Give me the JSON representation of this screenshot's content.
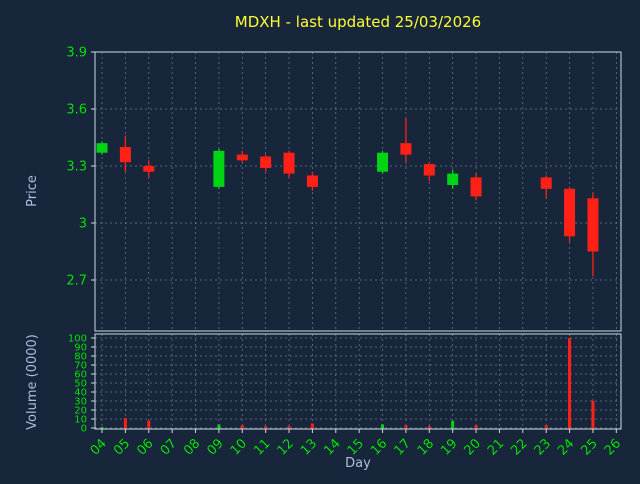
{
  "title": "MDXH - last updated 25/03/2026",
  "colors": {
    "background": "#17263b",
    "title": "#ffff33",
    "tick_label": "#00e000",
    "axis_label": "#aebedd",
    "grid": "#6b7f93",
    "border": "#cfd9e4",
    "up": "#00d414",
    "down": "#ff2116"
  },
  "chart_data": {
    "type": "candlestick+volume-bar",
    "title": "MDXH - last updated 25/03/2026",
    "xlabel": "Day",
    "ylabel_price": "Price",
    "ylabel_volume": "Volume (0000)",
    "x_ticks": [
      "04",
      "05",
      "06",
      "07",
      "08",
      "09",
      "10",
      "11",
      "12",
      "13",
      "14",
      "15",
      "16",
      "17",
      "18",
      "19",
      "20",
      "21",
      "22",
      "23",
      "24",
      "25",
      "26"
    ],
    "x_range": [
      3.7,
      26.2
    ],
    "price_ticks": [
      {
        "value": 3.9,
        "label": "3.9"
      },
      {
        "value": 3.6,
        "label": "3.6"
      },
      {
        "value": 3.3,
        "label": "3.3"
      },
      {
        "value": 3.0,
        "label": "3"
      },
      {
        "value": 2.7,
        "label": "2.7"
      }
    ],
    "price_range": [
      2.45,
      3.9
    ],
    "volume_ticks": [
      100,
      90,
      80,
      70,
      60,
      50,
      40,
      30,
      20,
      10,
      0
    ],
    "volume_range": [
      0,
      100
    ],
    "grid": true,
    "candles": [
      {
        "day": 4,
        "open": 3.37,
        "high": 3.43,
        "low": 3.36,
        "close": 3.42
      },
      {
        "day": 5,
        "open": 3.4,
        "high": 3.46,
        "low": 3.27,
        "close": 3.32
      },
      {
        "day": 6,
        "open": 3.3,
        "high": 3.33,
        "low": 3.24,
        "close": 3.27
      },
      {
        "day": 9,
        "open": 3.19,
        "high": 3.39,
        "low": 3.18,
        "close": 3.38
      },
      {
        "day": 10,
        "open": 3.36,
        "high": 3.38,
        "low": 3.32,
        "close": 3.33
      },
      {
        "day": 11,
        "open": 3.35,
        "high": 3.36,
        "low": 3.27,
        "close": 3.29
      },
      {
        "day": 12,
        "open": 3.37,
        "high": 3.38,
        "low": 3.24,
        "close": 3.26
      },
      {
        "day": 13,
        "open": 3.25,
        "high": 3.27,
        "low": 3.17,
        "close": 3.19
      },
      {
        "day": 16,
        "open": 3.27,
        "high": 3.38,
        "low": 3.26,
        "close": 3.37
      },
      {
        "day": 17,
        "open": 3.42,
        "high": 3.55,
        "low": 3.32,
        "close": 3.36
      },
      {
        "day": 18,
        "open": 3.31,
        "high": 3.32,
        "low": 3.22,
        "close": 3.25
      },
      {
        "day": 19,
        "open": 3.2,
        "high": 3.28,
        "low": 3.18,
        "close": 3.26
      },
      {
        "day": 20,
        "open": 3.24,
        "high": 3.26,
        "low": 3.12,
        "close": 3.14
      },
      {
        "day": 23,
        "open": 3.24,
        "high": 3.25,
        "low": 3.13,
        "close": 3.18
      },
      {
        "day": 24,
        "open": 3.18,
        "high": 3.19,
        "low": 2.9,
        "close": 2.93
      },
      {
        "day": 25,
        "open": 3.13,
        "high": 3.16,
        "low": 2.72,
        "close": 2.85
      }
    ],
    "volumes": [
      {
        "day": 4,
        "value": 1,
        "dir": "up"
      },
      {
        "day": 5,
        "value": 11,
        "dir": "down"
      },
      {
        "day": 6,
        "value": 8,
        "dir": "down"
      },
      {
        "day": 9,
        "value": 4,
        "dir": "up"
      },
      {
        "day": 10,
        "value": 3,
        "dir": "down"
      },
      {
        "day": 11,
        "value": 2,
        "dir": "down"
      },
      {
        "day": 12,
        "value": 2,
        "dir": "down"
      },
      {
        "day": 13,
        "value": 5,
        "dir": "down"
      },
      {
        "day": 16,
        "value": 4,
        "dir": "up"
      },
      {
        "day": 17,
        "value": 3,
        "dir": "down"
      },
      {
        "day": 18,
        "value": 2,
        "dir": "down"
      },
      {
        "day": 19,
        "value": 8,
        "dir": "up"
      },
      {
        "day": 20,
        "value": 3,
        "dir": "down"
      },
      {
        "day": 23,
        "value": 3,
        "dir": "down"
      },
      {
        "day": 24,
        "value": 100,
        "dir": "down"
      },
      {
        "day": 25,
        "value": 30,
        "dir": "down"
      }
    ]
  }
}
